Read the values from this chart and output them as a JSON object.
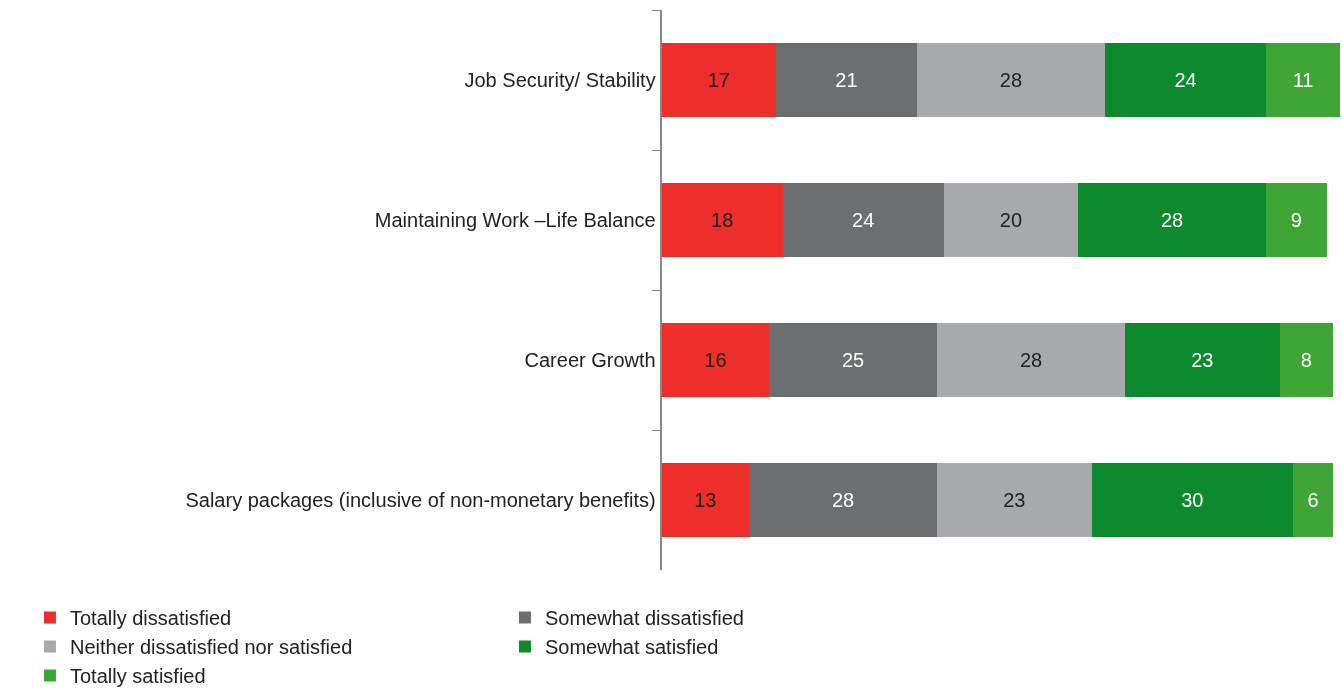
{
  "chart_data": {
    "type": "bar",
    "orientation": "horizontal",
    "stacked": true,
    "data_labels": true,
    "legend": "bottom",
    "categories": [
      "Job Security/ Stability",
      "Maintaining Work –Life Balance",
      "Career Growth",
      "Salary packages (inclusive of non-monetary benefits)"
    ],
    "series": [
      {
        "name": "Totally dissatisfied",
        "color": "#ee2e2a",
        "values": [
          17,
          18,
          16,
          13
        ]
      },
      {
        "name": "Somewhat dissatisfied",
        "color": "#6d6e70",
        "values": [
          21,
          24,
          25,
          28
        ]
      },
      {
        "name": "Neither dissatisfied nor satisfied",
        "color": "#a7a9ac",
        "values": [
          28,
          20,
          28,
          23
        ]
      },
      {
        "name": "Somewhat satisfied",
        "color": "#0d8a2e",
        "values": [
          24,
          28,
          23,
          30
        ]
      },
      {
        "name": "Totally satisfied",
        "color": "#3fa535",
        "values": [
          11,
          9,
          8,
          6
        ]
      }
    ]
  }
}
